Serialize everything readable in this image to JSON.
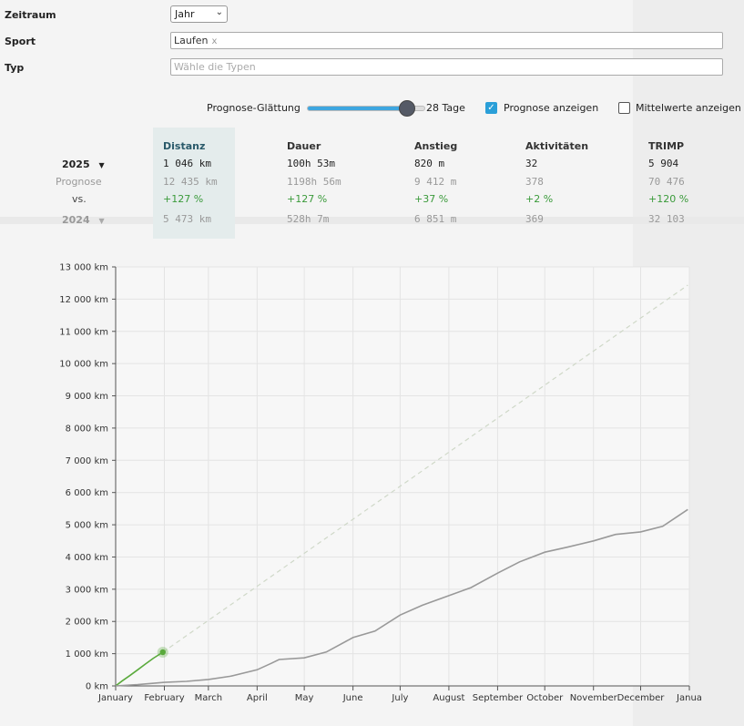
{
  "filters": {
    "zeitraum_label": "Zeitraum",
    "zeitraum_value": "Jahr",
    "sport_label": "Sport",
    "sport_tag": "Laufen",
    "sport_tag_remove": "x",
    "typ_label": "Typ",
    "typ_placeholder": "Wähle die Typen"
  },
  "controls": {
    "smoothing_label": "Prognose-Glättung",
    "smoothing_value": "28 Tage",
    "smoothing_fraction": 0.85,
    "show_forecast_label": "Prognose anzeigen",
    "show_forecast_checked": true,
    "show_averages_label": "Mittelwerte anzeigen",
    "show_averages_checked": false
  },
  "stats": {
    "columns": [
      "Distanz",
      "Dauer",
      "Anstieg",
      "Aktivitäten",
      "TRIMP"
    ],
    "current_year": "2025",
    "current": [
      "1 046 km",
      "100h 53m",
      "820 m",
      "32",
      "5 904"
    ],
    "forecast_label": "Prognose",
    "forecast": [
      "12 435 km",
      "1198h 56m",
      "9 412 m",
      "378",
      "70 476"
    ],
    "vs_label": "vs.",
    "vs": [
      "+127 %",
      "+127 %",
      "+37 %",
      "+2 %",
      "+120 %"
    ],
    "previous_year": "2024",
    "previous": [
      "5 473 km",
      "528h 7m",
      "6 851 m",
      "369",
      "32 103"
    ]
  },
  "colors": {
    "current": "#5aaa3c",
    "previous": "#999999",
    "forecast": "#cfd8c8",
    "accent": "#2a9fd8"
  },
  "chart_data": {
    "type": "line",
    "y_unit": "km",
    "ylim": [
      0,
      13000
    ],
    "y_ticks": [
      0,
      1000,
      2000,
      3000,
      4000,
      5000,
      6000,
      7000,
      8000,
      9000,
      10000,
      11000,
      12000,
      13000
    ],
    "y_tick_labels": [
      "0 km",
      "1 000 km",
      "2 000 km",
      "3 000 km",
      "4 000 km",
      "5 000 km",
      "6 000 km",
      "7 000 km",
      "8 000 km",
      "9 000 km",
      "10 000 km",
      "11 000 km",
      "12 000 km",
      "13 000 km"
    ],
    "x_tick_labels": [
      "January",
      "February",
      "March",
      "April",
      "May",
      "June",
      "July",
      "August",
      "September",
      "October",
      "November",
      "December",
      "Janua"
    ],
    "x_tick_dates": [
      "2025-01-01",
      "2025-02-01",
      "2025-03-01",
      "2025-04-01",
      "2025-05-01",
      "2025-06-01",
      "2025-07-01",
      "2025-08-01",
      "2025-09-01",
      "2025-10-01",
      "2025-11-01",
      "2025-12-01",
      "2026-01-01"
    ],
    "grid": true,
    "series": [
      {
        "role": "current",
        "points": [
          [
            "2025-01-01",
            0
          ],
          [
            "2025-01-05",
            150
          ],
          [
            "2025-01-10",
            320
          ],
          [
            "2025-01-15",
            500
          ],
          [
            "2025-01-20",
            680
          ],
          [
            "2025-01-25",
            860
          ],
          [
            "2025-01-31",
            1046
          ]
        ]
      },
      {
        "role": "forecast",
        "points": [
          [
            "2025-01-31",
            1046
          ],
          [
            "2025-12-31",
            12435
          ]
        ]
      },
      {
        "role": "previous",
        "points": [
          [
            "2025-01-01",
            0
          ],
          [
            "2025-01-15",
            40
          ],
          [
            "2025-02-01",
            110
          ],
          [
            "2025-02-15",
            140
          ],
          [
            "2025-03-01",
            200
          ],
          [
            "2025-03-15",
            300
          ],
          [
            "2025-04-01",
            500
          ],
          [
            "2025-04-10",
            700
          ],
          [
            "2025-04-15",
            820
          ],
          [
            "2025-05-01",
            870
          ],
          [
            "2025-05-15",
            1050
          ],
          [
            "2025-06-01",
            1500
          ],
          [
            "2025-06-15",
            1700
          ],
          [
            "2025-07-01",
            2200
          ],
          [
            "2025-07-15",
            2500
          ],
          [
            "2025-08-01",
            2800
          ],
          [
            "2025-08-15",
            3050
          ],
          [
            "2025-09-01",
            3500
          ],
          [
            "2025-09-15",
            3850
          ],
          [
            "2025-10-01",
            4150
          ],
          [
            "2025-10-15",
            4300
          ],
          [
            "2025-11-01",
            4500
          ],
          [
            "2025-11-15",
            4700
          ],
          [
            "2025-12-01",
            4780
          ],
          [
            "2025-12-15",
            4950
          ],
          [
            "2025-12-31",
            5473
          ]
        ]
      }
    ]
  }
}
